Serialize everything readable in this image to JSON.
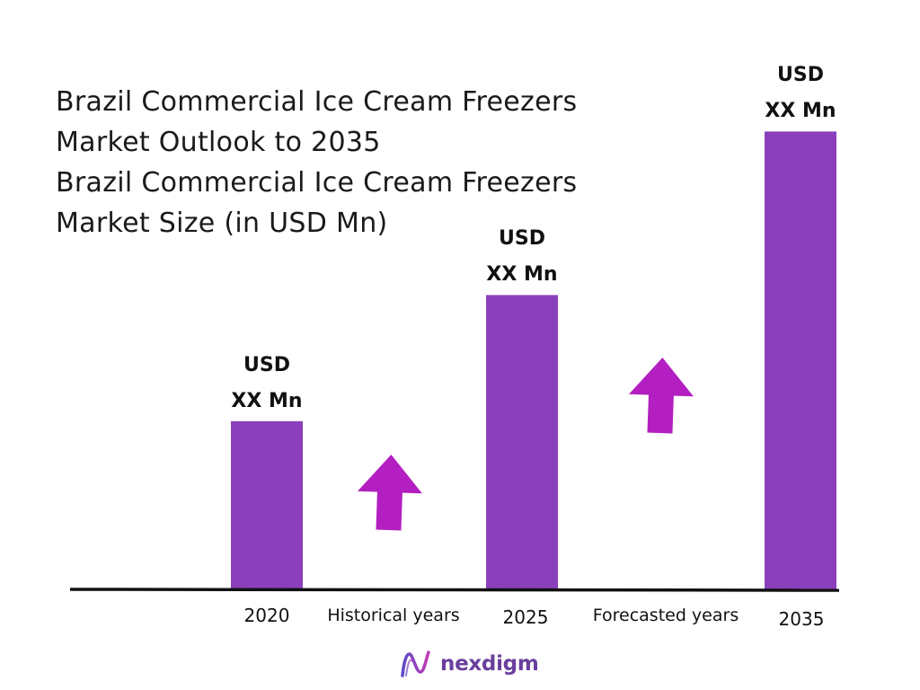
{
  "title_lines": [
    "Brazil Commercial Ice Cream Freezers",
    "Market Outlook to 2035",
    "Brazil Commercial Ice Cream Freezers",
    "Market Size (in USD Mn)"
  ],
  "chart_data": {
    "type": "bar",
    "categories": [
      "2020",
      "2025",
      "2035"
    ],
    "values": [
      36,
      63,
      98
    ],
    "value_labels": [
      {
        "line1": "USD",
        "line2": "XX Mn"
      },
      {
        "line1": "USD",
        "line2": "XX Mn"
      },
      {
        "line1": "USD",
        "line2": "XX Mn"
      }
    ],
    "period_labels": [
      "Historical years",
      "Forecasted years"
    ],
    "ylim": [
      0,
      100
    ],
    "grid": false,
    "bar_color": "#8a3fbb",
    "arrow_color": "#b31fc0"
  },
  "brand": {
    "name": "nexdigm",
    "logo_icon": "nexdigm-n-icon",
    "color": "#6a3f9e"
  }
}
